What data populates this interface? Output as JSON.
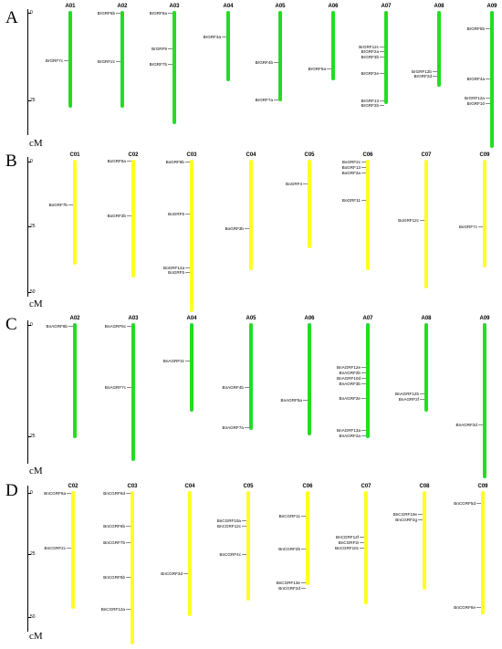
{
  "panels": [
    {
      "label": "A",
      "color": "#22dd22",
      "color_name": "green",
      "scale": {
        "unit": "cM",
        "ticks": [
          "0",
          "25"
        ]
      },
      "chromosomes": [
        {
          "name": "A01",
          "genes": [
            "BrGRF7c"
          ]
        },
        {
          "name": "A02",
          "genes": [
            "BrGRF6b",
            "BrGRF2c"
          ]
        },
        {
          "name": "A03",
          "genes": [
            "BrGRF6a",
            "BrGRF9",
            "BrGRF7b"
          ]
        },
        {
          "name": "A04",
          "genes": [
            "BrGRF3a"
          ]
        },
        {
          "name": "A05",
          "genes": [
            "BrGRF4b",
            "BrGRF7a"
          ]
        },
        {
          "name": "A06",
          "genes": [
            "BrGRF5a"
          ]
        },
        {
          "name": "A07",
          "genes": [
            "BrGRF12c",
            "BrGRF2a",
            "BrGRF3b",
            "BrGRF2e",
            "BrGRF13",
            "BrGRF2b"
          ]
        },
        {
          "name": "A08",
          "genes": [
            "BrGRF12b",
            "BrGRF2d"
          ]
        },
        {
          "name": "A09",
          "genes": [
            "BrGRF5b",
            "BrGRF4a",
            "BrGRF12a",
            "BrGRF10"
          ]
        }
      ]
    },
    {
      "label": "B",
      "color": "#ffff22",
      "color_name": "yellow",
      "scale": {
        "unit": "cM",
        "ticks": [
          "0",
          "25",
          "50"
        ]
      },
      "chromosomes": [
        {
          "name": "C01",
          "genes": [
            "BoGRF7b"
          ]
        },
        {
          "name": "C02",
          "genes": [
            "BoGRF6a",
            "BoGRF2b"
          ]
        },
        {
          "name": "C03",
          "genes": [
            "BoGRF6b",
            "BoGRF5",
            "BoGRF12a",
            "BoGRF5"
          ]
        },
        {
          "name": "C04",
          "genes": [
            "BoGRF3b"
          ]
        },
        {
          "name": "C05",
          "genes": [
            "BoGRF4"
          ]
        },
        {
          "name": "C06",
          "genes": [
            "BoGRF2c",
            "BoGRF13",
            "BoGRF2a",
            "BoGRF11"
          ]
        },
        {
          "name": "C07",
          "genes": [
            "BoGRF12c"
          ]
        },
        {
          "name": "C09",
          "genes": [
            "BoGRF7c"
          ]
        }
      ]
    },
    {
      "label": "C",
      "color": "#22dd22",
      "color_name": "green",
      "scale": {
        "unit": "cM",
        "ticks": [
          "0",
          "25"
        ]
      },
      "chromosomes": [
        {
          "name": "A02",
          "genes": [
            "BnAGRF6b"
          ]
        },
        {
          "name": "A03",
          "genes": [
            "BnAGRF6c",
            "BnAGRF7c"
          ]
        },
        {
          "name": "A04",
          "genes": [
            "BnAGRF3c"
          ]
        },
        {
          "name": "A05",
          "genes": [
            "BnAGRF4b",
            "BnAGRF7a"
          ]
        },
        {
          "name": "A06",
          "genes": [
            "BnAGRF5a"
          ]
        },
        {
          "name": "A07",
          "genes": [
            "BnAGRF12e",
            "BnAGRF2b",
            "BnAGRF10d",
            "BnAGRF3b",
            "BnAGRF2e",
            "BnAGRF13a",
            "BnAGRF2a"
          ]
        },
        {
          "name": "A08",
          "genes": [
            "BnAGRF12b",
            "BnAGRF2f"
          ]
        },
        {
          "name": "A09",
          "genes": [
            "BnAGRF2d"
          ]
        }
      ]
    },
    {
      "label": "D",
      "color": "#ffff22",
      "color_name": "yellow",
      "scale": {
        "unit": "cM",
        "ticks": [
          "0",
          "25",
          "50"
        ]
      },
      "chromosomes": [
        {
          "name": "C02",
          "genes": [
            "BnCGRF6a",
            "BnCGRF2c"
          ]
        },
        {
          "name": "C03",
          "genes": [
            "BnCGRF6d",
            "BnCGRF6b",
            "BnCGRF7b",
            "BnCGRF5b",
            "BnCGRF12a"
          ]
        },
        {
          "name": "C04",
          "genes": [
            "BnCGRF3d"
          ]
        },
        {
          "name": "C05",
          "genes": [
            "BnCGRF10a",
            "BnCGRF12c",
            "BnCGRF4c"
          ]
        },
        {
          "name": "C06",
          "genes": [
            "BnCGRF11",
            "BnCGRF2b",
            "BnCGRF13e",
            "BnCGRF2d"
          ]
        },
        {
          "name": "C07",
          "genes": [
            "BnCGRF12f",
            "BnCGRF2i",
            "BnCGRF10c"
          ]
        },
        {
          "name": "C08",
          "genes": [
            "BnCGRF10e",
            "BnCGRF2g"
          ]
        },
        {
          "name": "C09",
          "genes": [
            "BnCGRF5d",
            "BnCGRF6e"
          ]
        }
      ]
    }
  ]
}
